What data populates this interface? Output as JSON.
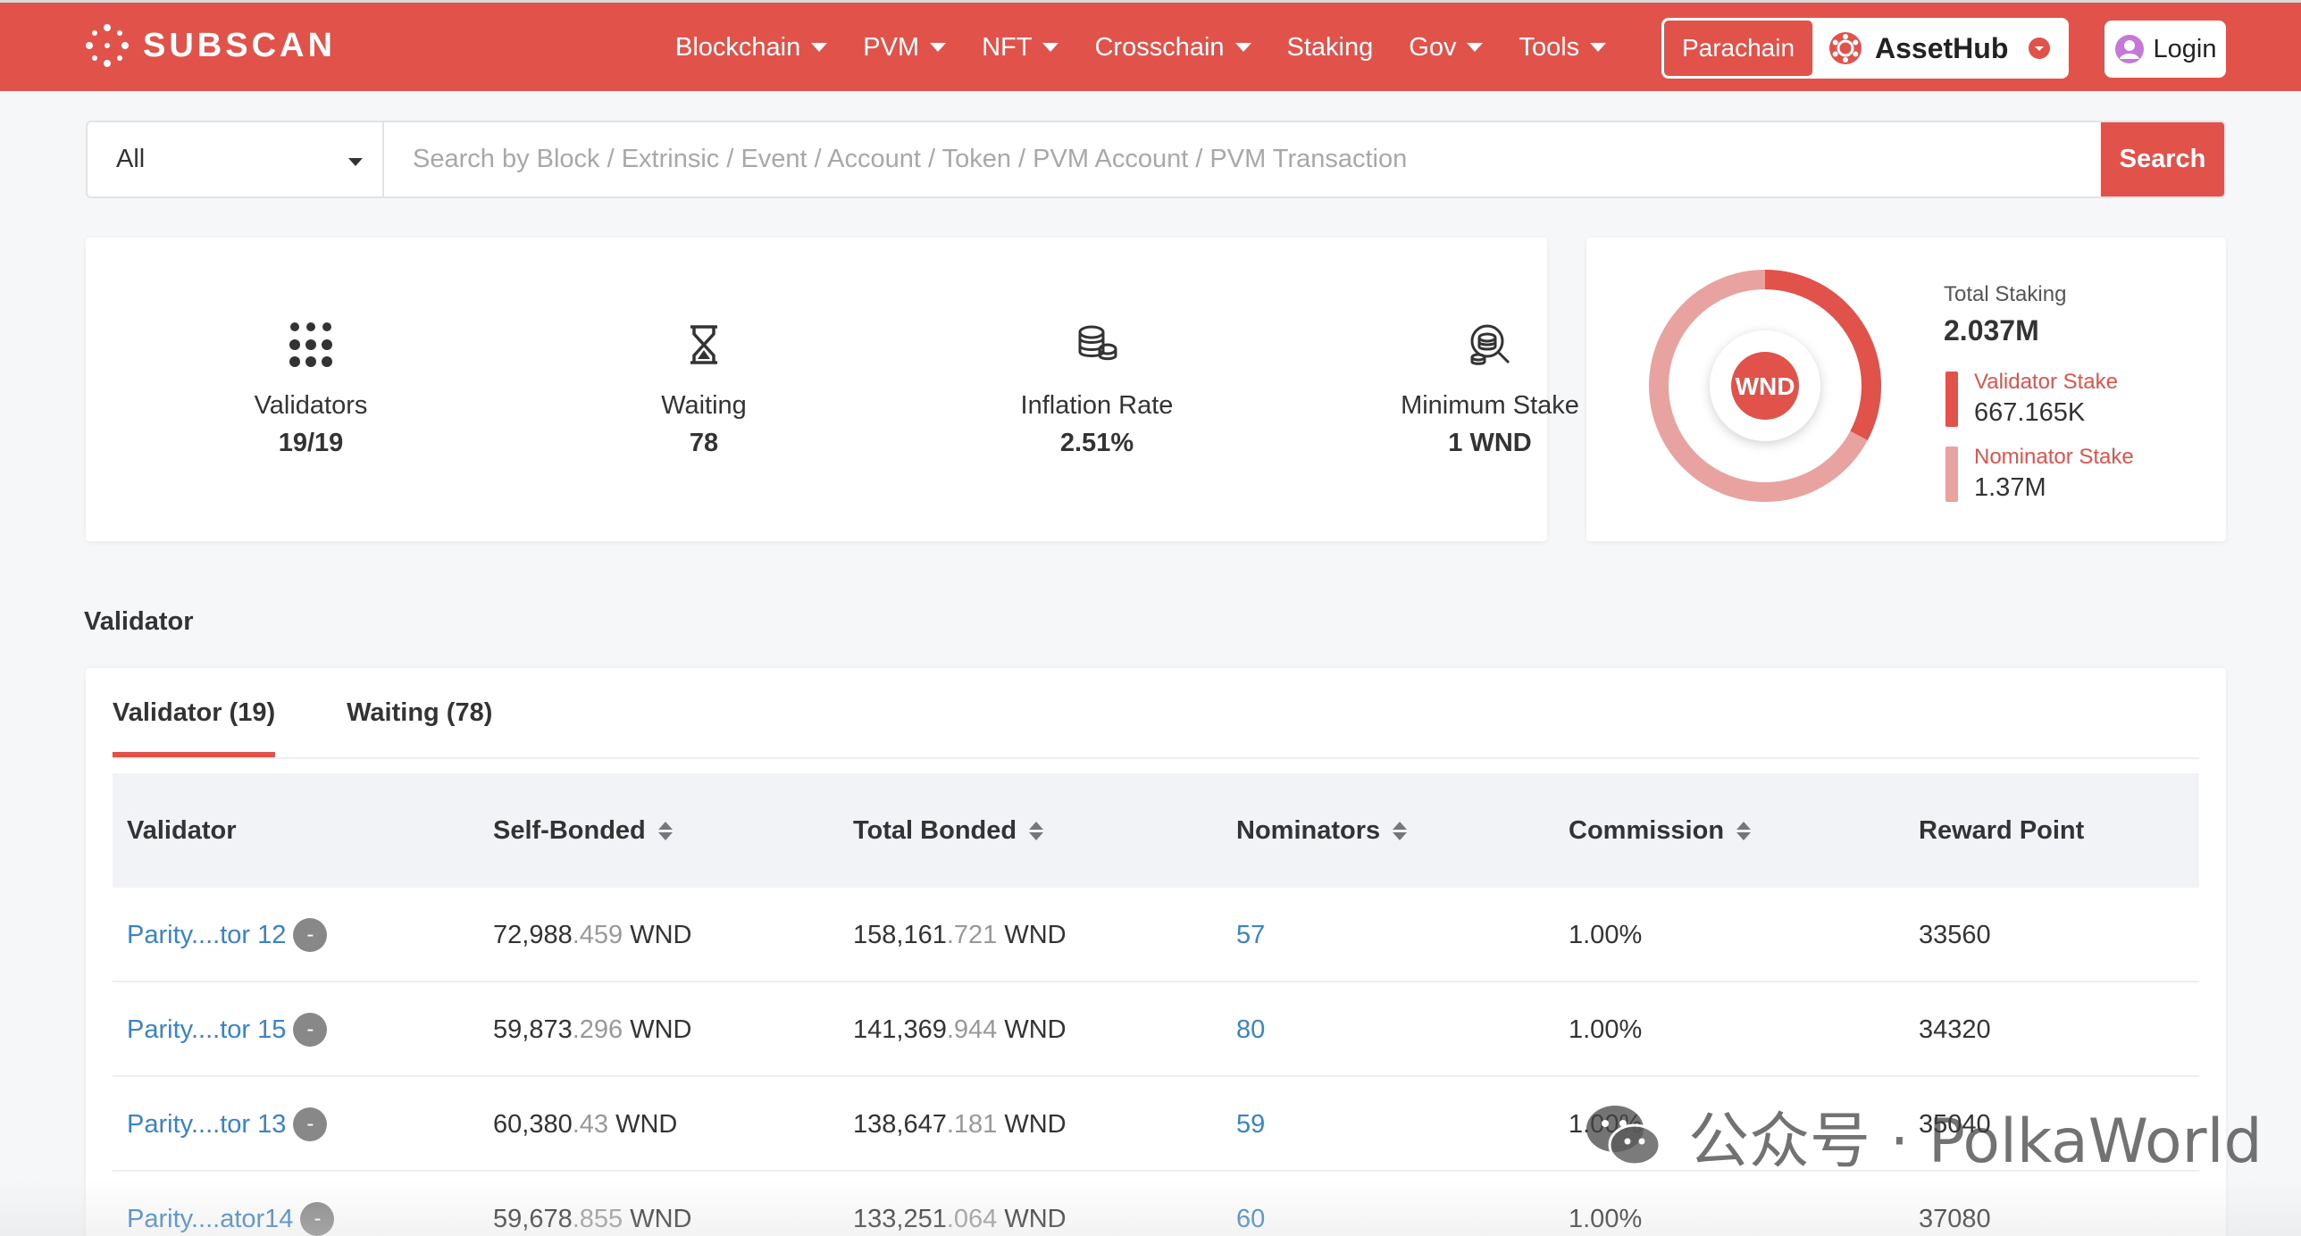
{
  "header": {
    "logo_text": "SUBSCAN",
    "nav": [
      {
        "label": "Blockchain",
        "dropdown": true
      },
      {
        "label": "PVM",
        "dropdown": true
      },
      {
        "label": "NFT",
        "dropdown": true
      },
      {
        "label": "Crosschain",
        "dropdown": true
      },
      {
        "label": "Staking",
        "dropdown": false
      },
      {
        "label": "Gov",
        "dropdown": true
      },
      {
        "label": "Tools",
        "dropdown": true
      }
    ],
    "chain_tab": "Parachain",
    "chain_name": "AssetHub",
    "login_label": "Login",
    "brand_color": "#e0524a"
  },
  "search": {
    "filter_value": "All",
    "placeholder": "Search by Block / Extrinsic / Event / Account / Token / PVM Account / PVM Transaction",
    "button_label": "Search"
  },
  "stats": [
    {
      "icon": "validators-grid-icon",
      "label": "Validators",
      "value": "19/19"
    },
    {
      "icon": "hourglass-icon",
      "label": "Waiting",
      "value": "78"
    },
    {
      "icon": "coins-icon",
      "label": "Inflation Rate",
      "value": "2.51%"
    },
    {
      "icon": "magnify-coins-icon",
      "label": "Minimum Stake",
      "value": "1 WND"
    }
  ],
  "staking": {
    "token": "WND",
    "total_label": "Total Staking",
    "total_value": "2.037M",
    "validator_label": "Validator Stake",
    "validator_value": "667.165K",
    "nominator_label": "Nominator Stake",
    "nominator_value": "1.37M",
    "validator_color": "#e0524a",
    "nominator_color": "#e8a3a0",
    "validator_fraction": 0.3275
  },
  "section_title": "Validator",
  "tabs": [
    {
      "label": "Validator (19)",
      "active": true
    },
    {
      "label": "Waiting (78)",
      "active": false
    }
  ],
  "table": {
    "columns": [
      "Validator",
      "Self-Bonded",
      "Total Bonded",
      "Nominators",
      "Commission",
      "Reward Point"
    ],
    "rows": [
      {
        "validator": "Parity....tor 12",
        "self_int": "72,988",
        "self_dec": ".459",
        "total_int": "158,161",
        "total_dec": ".721",
        "unit": "WND",
        "nominators": "57",
        "commission": "1.00%",
        "reward": "33560"
      },
      {
        "validator": "Parity....tor 15",
        "self_int": "59,873",
        "self_dec": ".296",
        "total_int": "141,369",
        "total_dec": ".944",
        "unit": "WND",
        "nominators": "80",
        "commission": "1.00%",
        "reward": "34320"
      },
      {
        "validator": "Parity....tor 13",
        "self_int": "60,380",
        "self_dec": ".43",
        "total_int": "138,647",
        "total_dec": ".181",
        "unit": "WND",
        "nominators": "59",
        "commission": "1.00%",
        "reward": "35040"
      },
      {
        "validator": "Parity....ator14",
        "self_int": "59,678",
        "self_dec": ".855",
        "total_int": "133,251",
        "total_dec": ".064",
        "unit": "WND",
        "nominators": "60",
        "commission": "1.00%",
        "reward": "37080"
      }
    ],
    "badge": "-"
  },
  "watermark": {
    "text": "公众号 · PolkaWorld",
    "icon": "wechat-icon"
  }
}
